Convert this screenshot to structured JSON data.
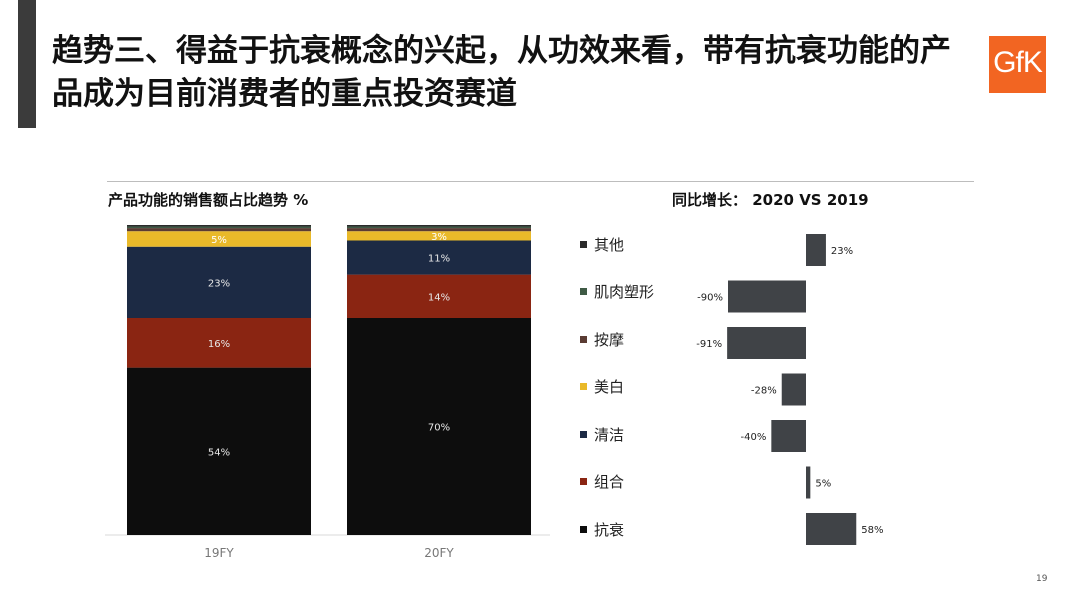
{
  "slide": {
    "title": "趋势三、得益于抗衰概念的兴起，从功效来看，带有抗衰功能的产品成为目前消费者的重点投资赛道",
    "logo_text": "GfK",
    "page_number": "19",
    "colors": {
      "accent_bar": "#3b3b3b",
      "logo_bg": "#f26522"
    }
  },
  "chart_data": [
    {
      "type": "bar",
      "stacked": true,
      "title": "产品功能的销售额占比趋势 %",
      "categories": [
        "19FY",
        "20FY"
      ],
      "series": [
        {
          "name": "抗衰",
          "color": "#0d0d0d",
          "values": [
            54,
            70
          ],
          "labels": [
            "54%",
            "70%"
          ]
        },
        {
          "name": "组合",
          "color": "#8a2512",
          "values": [
            16,
            14
          ],
          "labels": [
            "16%",
            "14%"
          ]
        },
        {
          "name": "清洁",
          "color": "#1c2a44",
          "values": [
            23,
            11
          ],
          "labels": [
            "23%",
            "11%"
          ]
        },
        {
          "name": "美白",
          "color": "#e9b929",
          "values": [
            5,
            3
          ],
          "labels": [
            "5%",
            "3%"
          ]
        },
        {
          "name": "按摩",
          "color": "#5a3b33",
          "values": [
            1,
            1
          ],
          "labels": [
            "",
            ""
          ]
        },
        {
          "name": "肌肉塑形",
          "color": "#3e5a45",
          "values": [
            0.5,
            0.5
          ],
          "labels": [
            "",
            ""
          ]
        },
        {
          "name": "其他",
          "color": "#2b2b2b",
          "values": [
            0.5,
            0.5
          ],
          "labels": [
            "",
            ""
          ]
        }
      ],
      "ylim": [
        0,
        100
      ]
    },
    {
      "type": "bar",
      "orientation": "horizontal",
      "title": "同比增长： 2020 VS 2019",
      "categories": [
        "其他",
        "肌肉塑形",
        "按摩",
        "美白",
        "清洁",
        "组合",
        "抗衰"
      ],
      "values": [
        23,
        -90,
        -91,
        -28,
        -40,
        5,
        58
      ],
      "labels": [
        "23%",
        "-90%",
        "-91%",
        "-28%",
        "-40%",
        "5%",
        "58%"
      ],
      "bar_color": "#404347",
      "xlim": [
        -100,
        100
      ]
    }
  ],
  "legend": [
    {
      "label": "其他",
      "color": "#2b2b2b"
    },
    {
      "label": "肌肉塑形",
      "color": "#3e5a45"
    },
    {
      "label": "按摩",
      "color": "#5a3b33"
    },
    {
      "label": "美白",
      "color": "#e9b929"
    },
    {
      "label": "清洁",
      "color": "#1c2a44"
    },
    {
      "label": "组合",
      "color": "#8a2512"
    },
    {
      "label": "抗衰",
      "color": "#0d0d0d"
    }
  ]
}
